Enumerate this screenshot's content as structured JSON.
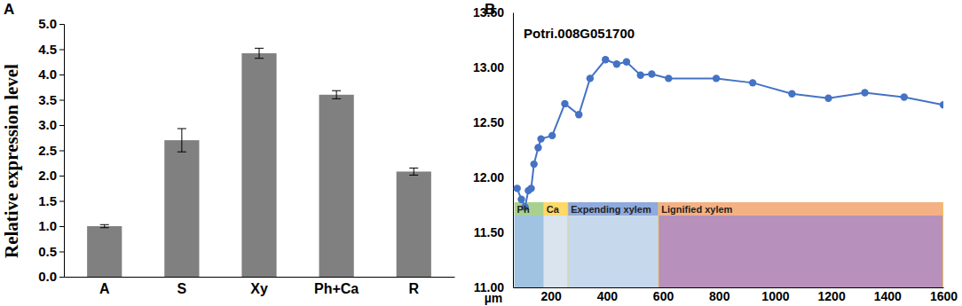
{
  "chart_data": [
    {
      "type": "bar",
      "panel_label": "A",
      "y_label": "Relative expression level",
      "categories": [
        "A",
        "S",
        "Xy",
        "Ph+Ca",
        "R"
      ],
      "values": [
        1.0,
        2.7,
        4.42,
        3.6,
        2.08
      ],
      "errors": [
        0.03,
        0.23,
        0.1,
        0.08,
        0.07
      ],
      "color": "#808080",
      "ylim": [
        0,
        5
      ],
      "yticks": [
        {
          "value": 0,
          "label": "0.0"
        },
        {
          "value": 0.5,
          "label": "0.5"
        },
        {
          "value": 1,
          "label": "1.0"
        },
        {
          "value": 1.5,
          "label": "1.5"
        },
        {
          "value": 2,
          "label": "2.0"
        },
        {
          "value": 2.5,
          "label": "2.5"
        },
        {
          "value": 3,
          "label": "3.0"
        },
        {
          "value": 3.5,
          "label": "3.5"
        },
        {
          "value": 4,
          "label": "4.0"
        },
        {
          "value": 4.5,
          "label": "4.5"
        },
        {
          "value": 5,
          "label": "5.0"
        }
      ]
    },
    {
      "type": "line",
      "panel_label": "B",
      "title": "Potri.008G051700",
      "x_label": "µm",
      "x": [
        80,
        95,
        108,
        120,
        130,
        140,
        155,
        165,
        205,
        250,
        300,
        340,
        395,
        435,
        470,
        520,
        560,
        620,
        790,
        920,
        1060,
        1190,
        1320,
        1460,
        1600
      ],
      "values": [
        11.9,
        11.8,
        11.73,
        11.88,
        11.9,
        12.12,
        12.27,
        12.35,
        12.38,
        12.67,
        12.57,
        12.9,
        13.07,
        13.03,
        13.05,
        12.93,
        12.94,
        12.9,
        12.9,
        12.86,
        12.76,
        12.72,
        12.77,
        12.73,
        12.66
      ],
      "color": "#4472c4",
      "marker": "circle",
      "xlim": [
        65,
        1600
      ],
      "xticks": [
        200,
        400,
        600,
        800,
        1000,
        1200,
        1400,
        1600
      ],
      "ylim": [
        11,
        13.5
      ],
      "yticks": [
        {
          "value": 11,
          "label": "11.00"
        },
        {
          "value": 11.5,
          "label": "11.50"
        },
        {
          "value": 12,
          "label": "12.00"
        },
        {
          "value": 12.5,
          "label": "12.50"
        },
        {
          "value": 13,
          "label": "13.00"
        },
        {
          "value": 13.5,
          "label": "13.50"
        }
      ],
      "regions": [
        {
          "label": "Ph",
          "start": 70,
          "end": 175,
          "color": "#a9d18e"
        },
        {
          "label": "Ca",
          "start": 175,
          "end": 262,
          "color": "#ffd966"
        },
        {
          "label": "Expending xylem",
          "start": 262,
          "end": 585,
          "color": "#8faadc"
        },
        {
          "label": "Lignified xylem",
          "start": 585,
          "end": 1600,
          "color": "#f4b183"
        }
      ]
    }
  ]
}
